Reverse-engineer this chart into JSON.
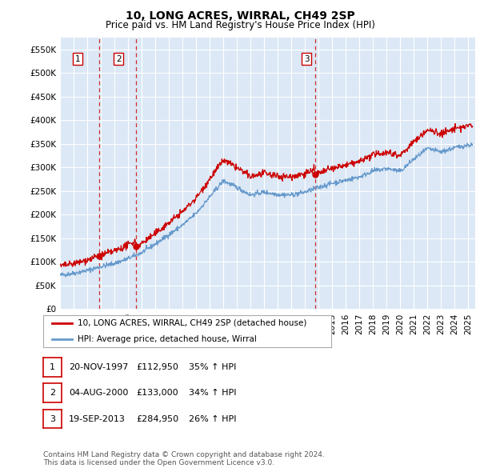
{
  "title": "10, LONG ACRES, WIRRAL, CH49 2SP",
  "subtitle": "Price paid vs. HM Land Registry's House Price Index (HPI)",
  "ylabel_ticks": [
    "£0",
    "£50K",
    "£100K",
    "£150K",
    "£200K",
    "£250K",
    "£300K",
    "£350K",
    "£400K",
    "£450K",
    "£500K",
    "£550K"
  ],
  "ytick_values": [
    0,
    50000,
    100000,
    150000,
    200000,
    250000,
    300000,
    350000,
    400000,
    450000,
    500000,
    550000
  ],
  "ylim": [
    0,
    575000
  ],
  "xmin": 1995.0,
  "xmax": 2025.5,
  "sale_dates_num": [
    1997.89,
    2000.59,
    2013.72
  ],
  "sale_prices": [
    112950,
    133000,
    284950
  ],
  "sale_labels": [
    "1",
    "2",
    "3"
  ],
  "vline_color": "#cc0000",
  "sale_dot_color": "#cc0000",
  "hpi_line_color": "#6699cc",
  "price_line_color": "#cc0000",
  "legend_line1": "10, LONG ACRES, WIRRAL, CH49 2SP (detached house)",
  "legend_line2": "HPI: Average price, detached house, Wirral",
  "table_rows": [
    [
      "1",
      "20-NOV-1997",
      "£112,950",
      "35% ↑ HPI"
    ],
    [
      "2",
      "04-AUG-2000",
      "£133,000",
      "34% ↑ HPI"
    ],
    [
      "3",
      "19-SEP-2013",
      "£284,950",
      "26% ↑ HPI"
    ]
  ],
  "footnote": "Contains HM Land Registry data © Crown copyright and database right 2024.\nThis data is licensed under the Open Government Licence v3.0.",
  "bg_color": "#ffffff",
  "plot_bg_color": "#dce8f5",
  "grid_color": "#ffffff",
  "title_fontsize": 10,
  "subtitle_fontsize": 8.5,
  "tick_fontsize": 7.5
}
